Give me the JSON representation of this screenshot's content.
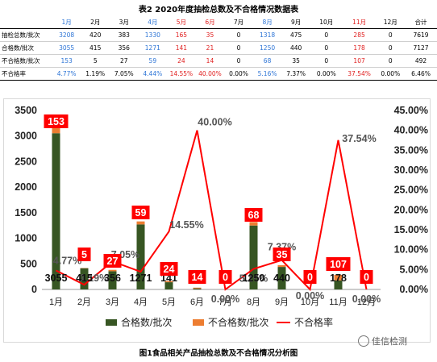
{
  "table": {
    "title": "表2    2020年度抽检总数及不合格情况数据表",
    "months": [
      "1月",
      "2月",
      "3月",
      "4月",
      "5月",
      "6月",
      "7月",
      "8月",
      "9月",
      "10月",
      "11月",
      "12月"
    ],
    "month_styles": [
      "blue",
      "",
      "",
      "blue",
      "red",
      "red",
      "bold",
      "blue",
      "",
      "bold",
      "red",
      "bold"
    ],
    "total_header": "合计",
    "rows": [
      {
        "label": "抽检总数/批次",
        "cells": [
          "3208",
          "420",
          "383",
          "1330",
          "165",
          "35",
          "0",
          "1318",
          "475",
          "0",
          "285",
          "0"
        ],
        "total": "7619"
      },
      {
        "label": "合格数/批次",
        "cells": [
          "3055",
          "415",
          "356",
          "1271",
          "141",
          "21",
          "0",
          "1250",
          "440",
          "0",
          "178",
          "0"
        ],
        "total": "7127"
      },
      {
        "label": "不合格数/批次",
        "cells": [
          "153",
          "5",
          "27",
          "59",
          "24",
          "14",
          "0",
          "68",
          "35",
          "0",
          "107",
          "0"
        ],
        "total": "492"
      },
      {
        "label": "不合格率",
        "cells": [
          "4.77%",
          "1.19%",
          "7.05%",
          "4.44%",
          "14.55%",
          "40.00%",
          "0.00%",
          "5.16%",
          "7.37%",
          "0.00%",
          "37.54%",
          "0.00%"
        ],
        "total": "6.46%"
      }
    ]
  },
  "chart_data": {
    "type": "bar",
    "categories": [
      "1月",
      "2月",
      "3月",
      "4月",
      "5月",
      "6月",
      "7月",
      "8月",
      "9月",
      "10月",
      "11月",
      "12月"
    ],
    "series": [
      {
        "name": "合格数/批次",
        "kind": "bar",
        "color": "#375623",
        "values": [
          3055,
          415,
          356,
          1271,
          141,
          21,
          0,
          1250,
          440,
          0,
          178,
          0
        ],
        "labels": [
          "3055",
          "415",
          "356",
          "1271",
          "141",
          "",
          "",
          "1250",
          "440",
          "",
          "178",
          ""
        ]
      },
      {
        "name": "不合格数/批次",
        "kind": "bar",
        "color": "#ed7d31",
        "values": [
          153,
          5,
          27,
          59,
          24,
          14,
          0,
          68,
          35,
          0,
          107,
          0
        ],
        "labels": [
          "153",
          "5",
          "27",
          "59",
          "24",
          "14",
          "0",
          "68",
          "35",
          "0",
          "107",
          "0"
        ]
      },
      {
        "name": "不合格率",
        "kind": "line",
        "color": "#ff0000",
        "axis": "right",
        "values": [
          4.77,
          1.19,
          7.05,
          4.44,
          14.55,
          40.0,
          0.0,
          5.16,
          7.37,
          0.0,
          37.54,
          0.0
        ],
        "labels": [
          "4.77%",
          "1.19%",
          "7.05%",
          "",
          "14.55%",
          "40.00%",
          "0.00%",
          "5.16%",
          "7.37%",
          "0.00%",
          "37.54%",
          "0.00%"
        ]
      }
    ],
    "y_left": {
      "min": 0,
      "max": 3500,
      "step": 500
    },
    "y_right": {
      "min": 0,
      "max": 45,
      "step": 5,
      "suffix": "%"
    },
    "legend_position": "bottom",
    "grid": false
  },
  "caption": "图1食品相关产品抽检总数及不合格情况分析图",
  "watermark": "佳信检测"
}
